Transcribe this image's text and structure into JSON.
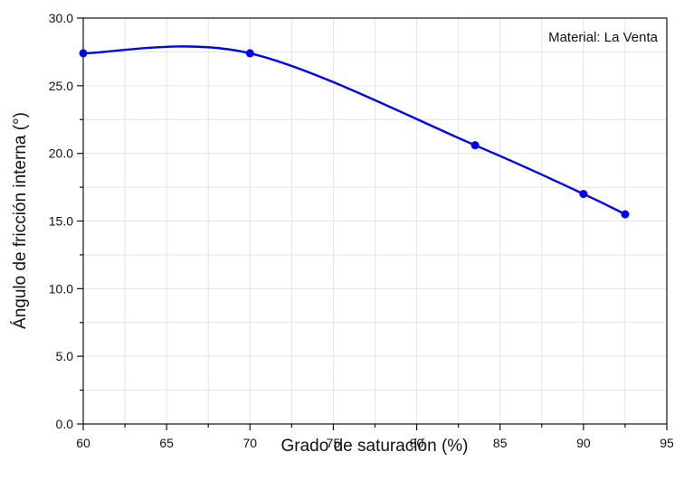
{
  "chart_data": {
    "type": "line",
    "xlabel": "Grado de saturación (%)",
    "ylabel": "Ángulo de fricción interna (°)",
    "annotation": "Material: La Venta",
    "xlim": [
      60,
      95
    ],
    "ylim": [
      0,
      30
    ],
    "x_ticks": [
      "60",
      "65",
      "70",
      "75",
      "80",
      "85",
      "90",
      "95"
    ],
    "y_ticks": [
      "0.0",
      "5.0",
      "10.0",
      "15.0",
      "20.0",
      "25.0",
      "30.0"
    ],
    "grid": true,
    "smooth": true,
    "series": [
      {
        "color": "#0000ff",
        "x": [
          60,
          70,
          83.5,
          90,
          92.5
        ],
        "y": [
          27.4,
          27.4,
          20.6,
          17.0,
          15.5
        ]
      }
    ]
  }
}
